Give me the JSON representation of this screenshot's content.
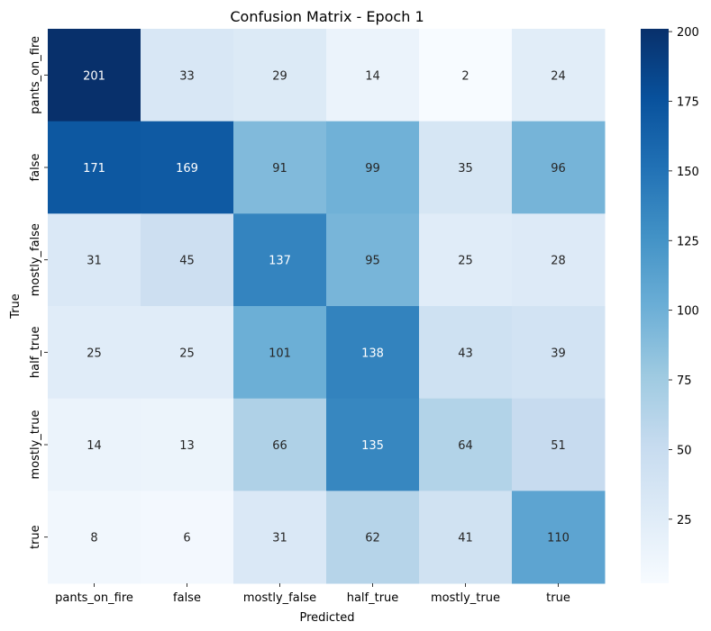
{
  "chart_data": {
    "type": "heatmap",
    "title": "Confusion Matrix - Epoch 1",
    "xlabel": "Predicted",
    "ylabel": "True",
    "x_categories": [
      "pants_on_fire",
      "false",
      "mostly_false",
      "half_true",
      "mostly_true",
      "true"
    ],
    "y_categories": [
      "pants_on_fire",
      "false",
      "mostly_false",
      "half_true",
      "mostly_true",
      "true"
    ],
    "values": [
      [
        201,
        33,
        29,
        14,
        2,
        24
      ],
      [
        171,
        169,
        91,
        99,
        35,
        96
      ],
      [
        31,
        45,
        137,
        95,
        25,
        28
      ],
      [
        25,
        25,
        101,
        138,
        43,
        39
      ],
      [
        14,
        13,
        66,
        135,
        64,
        51
      ],
      [
        8,
        6,
        31,
        62,
        41,
        110
      ]
    ],
    "colormap": "Blues",
    "value_range": [
      2,
      201
    ],
    "colorbar_ticks": [
      25,
      50,
      75,
      100,
      125,
      150,
      175,
      200
    ]
  }
}
